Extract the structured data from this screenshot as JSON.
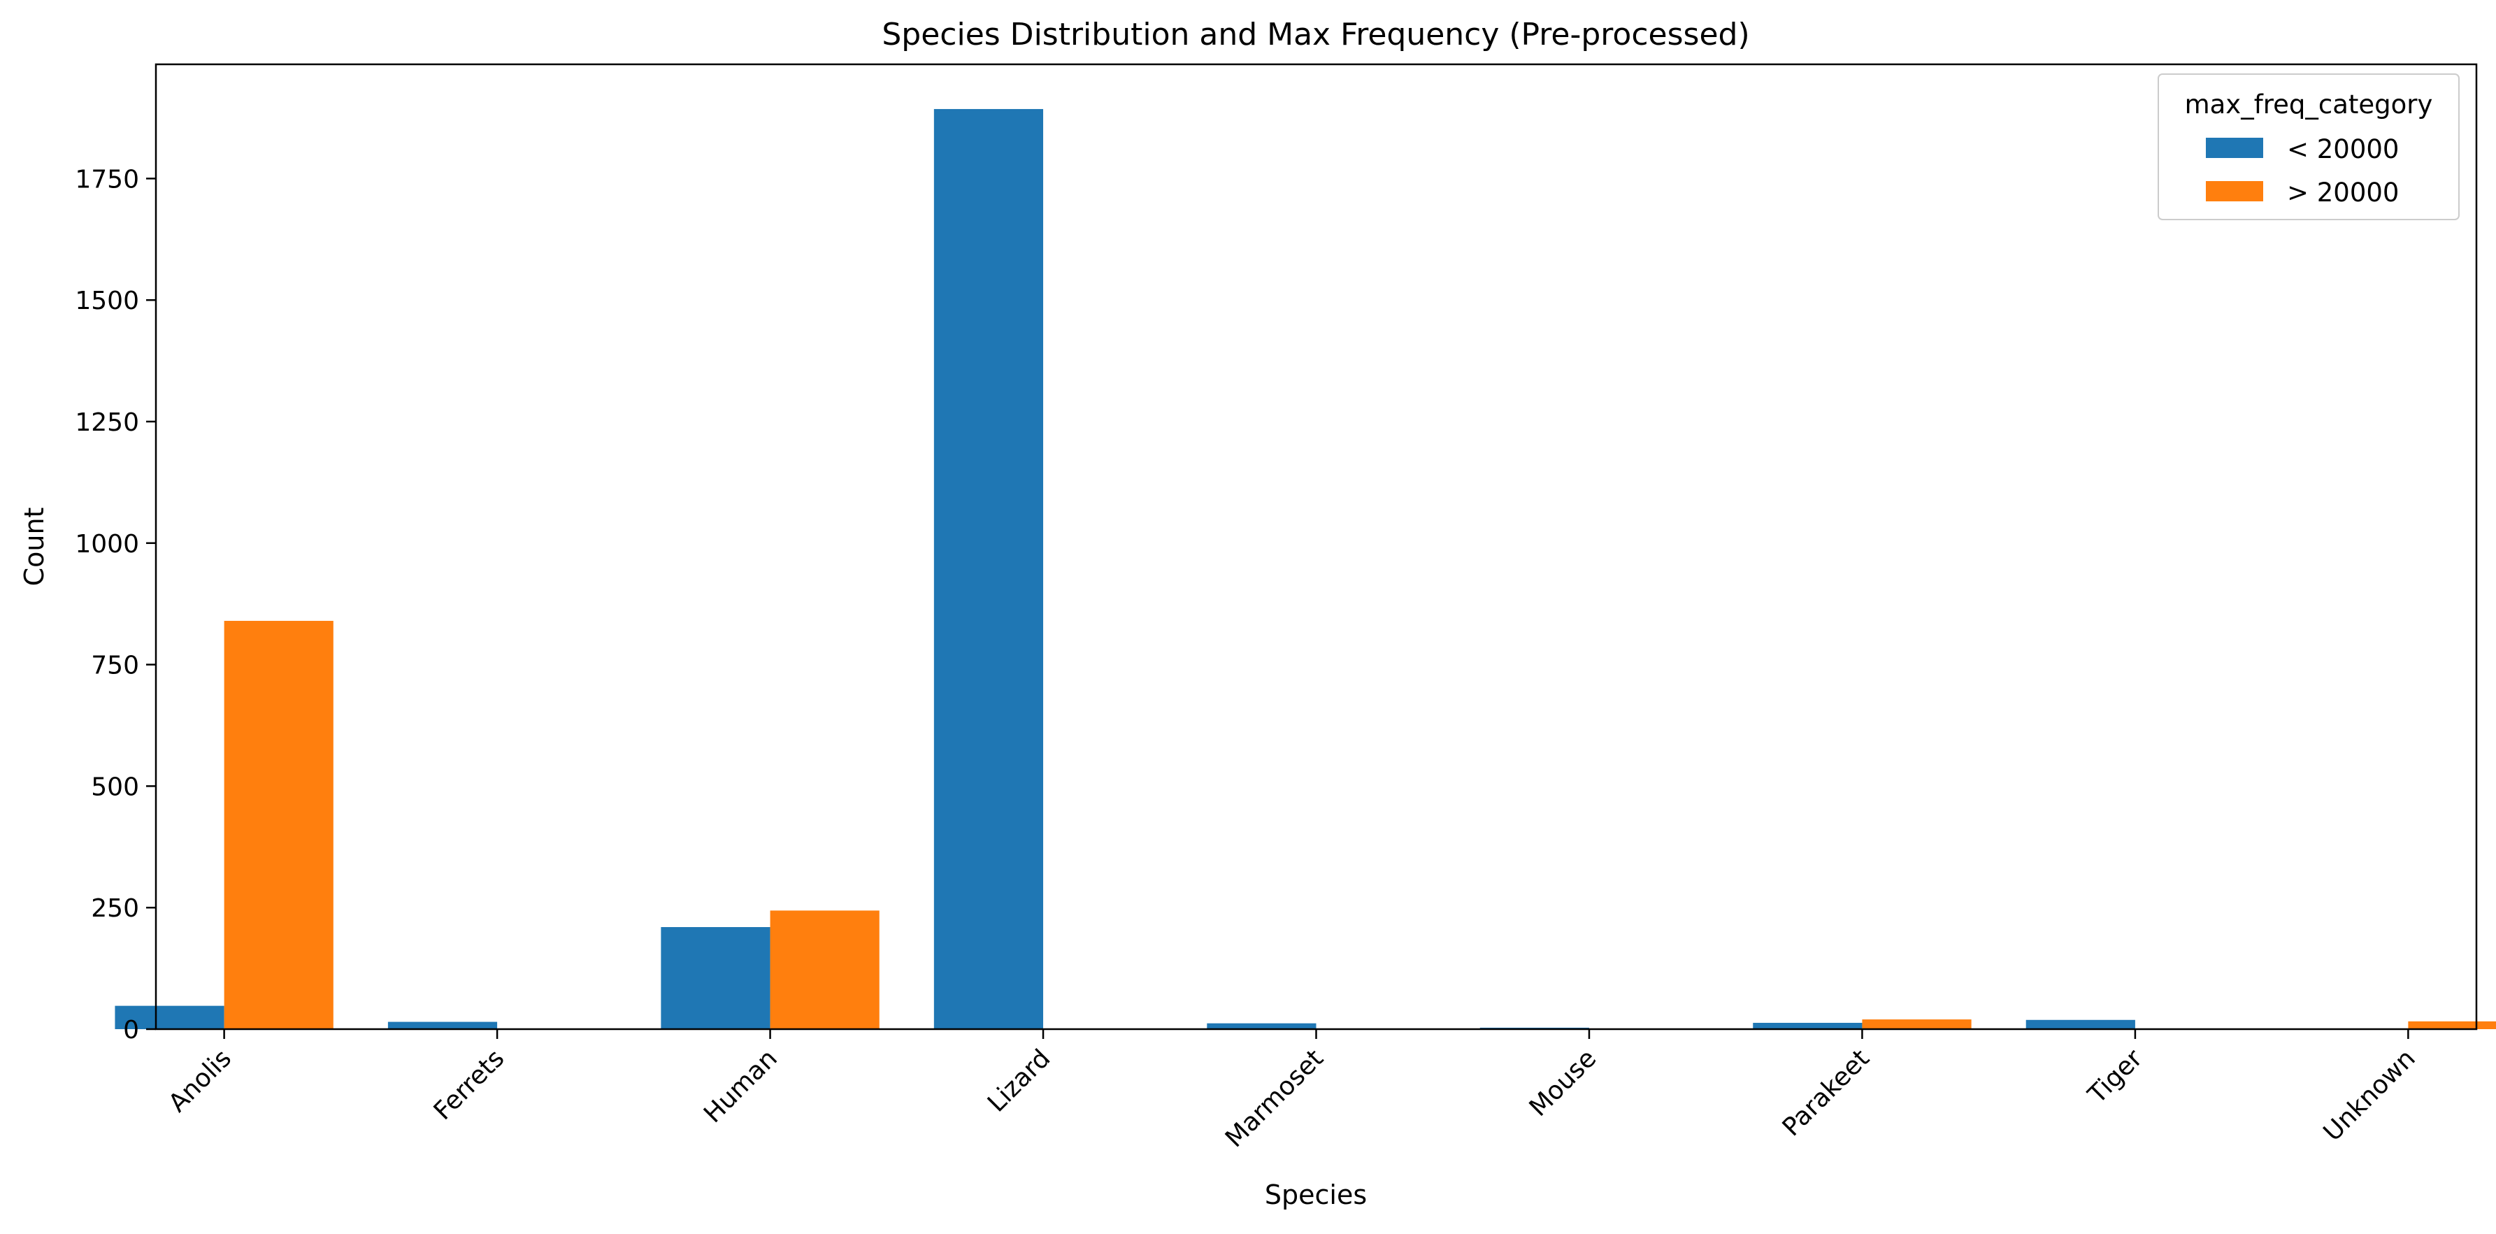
{
  "chart_data": {
    "type": "bar",
    "title": "Species Distribution and Max Frequency (Pre-processed)",
    "xlabel": "Species",
    "ylabel": "Count",
    "categories": [
      "Anolis",
      "Ferrets",
      "Human",
      "Lizard",
      "Marmoset",
      "Mouse",
      "Parakeet",
      "Tiger",
      "Unknown"
    ],
    "series": [
      {
        "name": "< 20000",
        "color": "#1f77b4",
        "values": [
          48,
          15,
          210,
          1893,
          12,
          3,
          13,
          19,
          0
        ]
      },
      {
        "name": "> 20000",
        "color": "#ff7f0e",
        "values": [
          840,
          0,
          244,
          0,
          0,
          0,
          20,
          0,
          16
        ]
      }
    ],
    "ylim": [
      0,
      1985
    ],
    "yticks": [
      0,
      250,
      500,
      750,
      1000,
      1250,
      1500,
      1750
    ],
    "grid": false,
    "legend": {
      "title": "max_freq_category",
      "placement": "top-right"
    }
  }
}
